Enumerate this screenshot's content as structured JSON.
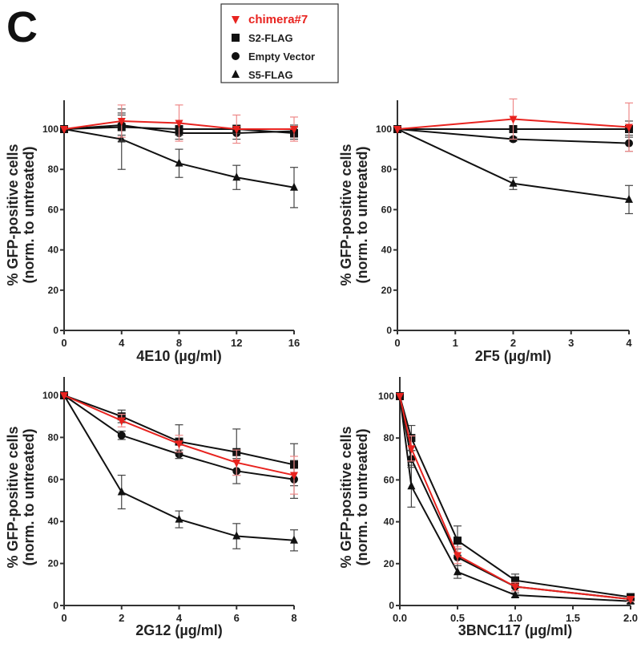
{
  "panel_label": "C",
  "legend": [
    {
      "name": "chimera#7",
      "color": "#e8231f",
      "marker": "inverted-triangle"
    },
    {
      "name": "S2-FLAG",
      "color": "#111111",
      "marker": "square"
    },
    {
      "name": "Empty Vector",
      "color": "#111111",
      "marker": "circle"
    },
    {
      "name": "S5-FLAG",
      "color": "#111111",
      "marker": "triangle"
    }
  ],
  "chart_data": [
    {
      "type": "line",
      "xlabel": "4E10 (µg/ml)",
      "ylabel": "% GFP-positive cells",
      "ylabel2": "(norm. to untreated)",
      "x": [
        0,
        4,
        8,
        12,
        16
      ],
      "xticks": [
        "0",
        "4",
        "8",
        "12",
        "16"
      ],
      "xlim": [
        0,
        16
      ],
      "yticks": [
        "0",
        "20",
        "40",
        "60",
        "80",
        "100"
      ],
      "ylim": [
        0,
        115
      ],
      "series": [
        {
          "name": "chimera#7",
          "values": [
            100,
            104,
            103,
            100,
            100
          ],
          "err": [
            0,
            8,
            9,
            7,
            6
          ]
        },
        {
          "name": "S2-FLAG",
          "values": [
            100,
            101,
            100,
            100,
            98
          ],
          "err": [
            0,
            7,
            3,
            2,
            3
          ]
        },
        {
          "name": "Empty Vector",
          "values": [
            100,
            102,
            98,
            98,
            99
          ],
          "err": [
            0,
            5,
            3,
            3,
            3
          ]
        },
        {
          "name": "S5-FLAG",
          "values": [
            100,
            95,
            83,
            76,
            71
          ],
          "err": [
            0,
            15,
            7,
            6,
            10
          ]
        }
      ]
    },
    {
      "type": "line",
      "xlabel": "2F5 (µg/ml)",
      "ylabel": "% GFP-positive cells",
      "ylabel2": "(norm. to untreated)",
      "x": [
        0,
        2,
        4
      ],
      "xticks": [
        "0",
        "1",
        "2",
        "3",
        "4"
      ],
      "xlim": [
        0,
        4
      ],
      "yticks": [
        "0",
        "20",
        "40",
        "60",
        "80",
        "100"
      ],
      "ylim": [
        0,
        115
      ],
      "series": [
        {
          "name": "chimera#7",
          "values": [
            100,
            105,
            101
          ],
          "err": [
            0,
            10,
            12
          ]
        },
        {
          "name": "S2-FLAG",
          "values": [
            100,
            100,
            100
          ],
          "err": [
            0,
            1,
            4
          ]
        },
        {
          "name": "Empty Vector",
          "values": [
            100,
            95,
            93
          ],
          "err": [
            0,
            1,
            4
          ]
        },
        {
          "name": "S5-FLAG",
          "values": [
            100,
            73,
            65
          ],
          "err": [
            0,
            3,
            7
          ]
        }
      ]
    },
    {
      "type": "line",
      "xlabel": "2G12 (µg/ml)",
      "ylabel": "% GFP-positive cells",
      "ylabel2": "(norm. to untreated)",
      "x": [
        0,
        2,
        4,
        6,
        8
      ],
      "xticks": [
        "0",
        "2",
        "4",
        "6",
        "8"
      ],
      "xlim": [
        0,
        8
      ],
      "yticks": [
        "0",
        "20",
        "40",
        "60",
        "80",
        "100"
      ],
      "ylim": [
        0,
        113
      ],
      "series": [
        {
          "name": "chimera#7",
          "values": [
            100,
            88,
            77,
            68,
            62
          ],
          "err": [
            0,
            3,
            4,
            6,
            9
          ]
        },
        {
          "name": "S2-FLAG",
          "values": [
            100,
            90,
            78,
            73,
            67
          ],
          "err": [
            0,
            3,
            8,
            11,
            10
          ]
        },
        {
          "name": "Empty Vector",
          "values": [
            100,
            81,
            72,
            64,
            60
          ],
          "err": [
            0,
            2,
            2,
            6,
            9
          ]
        },
        {
          "name": "S5-FLAG",
          "values": [
            100,
            54,
            41,
            33,
            31
          ],
          "err": [
            0,
            8,
            4,
            6,
            5
          ]
        }
      ]
    },
    {
      "type": "line",
      "xlabel": "3BNC117 (µg/ml)",
      "ylabel": "% GFP-positive cells",
      "ylabel2": "(norm. to untreated)",
      "x": [
        0,
        0.1,
        0.5,
        1.0,
        2.0
      ],
      "xticks": [
        "0.0",
        "0.5",
        "1.0",
        "1.5",
        "2.0"
      ],
      "xlim": [
        0,
        2
      ],
      "yticks": [
        "0",
        "20",
        "40",
        "60",
        "80",
        "100"
      ],
      "ylim": [
        0,
        113
      ],
      "series": [
        {
          "name": "chimera#7",
          "values": [
            100,
            75,
            24,
            9,
            3
          ],
          "err": [
            0,
            6,
            4,
            2,
            1
          ]
        },
        {
          "name": "S2-FLAG",
          "values": [
            100,
            80,
            31,
            12,
            4
          ],
          "err": [
            0,
            6,
            7,
            3,
            1
          ]
        },
        {
          "name": "Empty Vector",
          "values": [
            100,
            70,
            23,
            9,
            3
          ],
          "err": [
            0,
            4,
            4,
            2,
            1
          ]
        },
        {
          "name": "S5-FLAG",
          "values": [
            100,
            57,
            16,
            5,
            2
          ],
          "err": [
            0,
            10,
            3,
            1,
            1
          ]
        }
      ]
    }
  ]
}
